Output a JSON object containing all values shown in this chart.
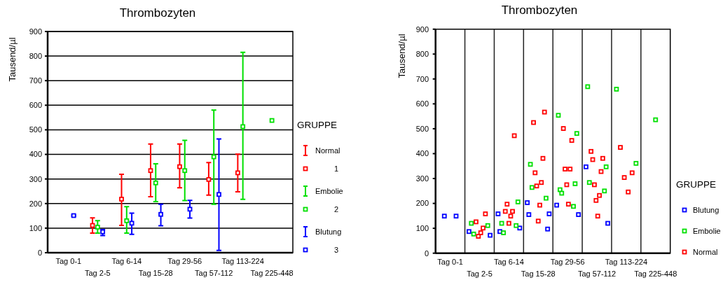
{
  "chart_data": [
    {
      "type": "scatter",
      "title": "Thrombozyten",
      "ylabel": "Tausend/µl",
      "categories": [
        "Tag 0-1",
        "Tag 2-5",
        "Tag 6-14",
        "Tag 15-28",
        "Tag 29-56",
        "Tag 57-112",
        "Tag 113-224",
        "Tag 225-448"
      ],
      "ylim": [
        0,
        900
      ],
      "yticks": [
        0,
        100,
        200,
        300,
        400,
        500,
        600,
        700,
        800,
        900
      ],
      "grid": "y",
      "legend": "right",
      "legend_title": "GRUPPE",
      "marker": "square",
      "annotations": [
        "1",
        "2",
        "3"
      ],
      "series": [
        {
          "name": "Normal",
          "color": "#ff0000",
          "values": [
            null,
            111,
            218,
            334,
            350,
            298,
            325,
            null
          ],
          "errors": [
            null,
            [
              80,
              142
            ],
            [
              111,
              319
            ],
            [
              228,
              442
            ],
            [
              264,
              442
            ],
            [
              234,
              367
            ],
            [
              248,
              401
            ],
            null
          ]
        },
        {
          "name": "Embolie",
          "color": "#00e000",
          "values": [
            null,
            104,
            130,
            284,
            334,
            390,
            513,
            538
          ],
          "errors": [
            null,
            [
              80,
              130
            ],
            [
              80,
              187
            ],
            [
              208,
              362
            ],
            [
              212,
              457
            ],
            [
              197,
              580
            ],
            [
              217,
              815
            ],
            null
          ]
        },
        {
          "name": "Blutung",
          "color": "#0000ff",
          "values": [
            151,
            85,
            120,
            156,
            177,
            237,
            null,
            null
          ],
          "errors": [
            [
              148,
              154
            ],
            [
              70,
              94
            ],
            [
              75,
              161
            ],
            [
              110,
              197
            ],
            [
              141,
              213
            ],
            [
              9,
              463
            ],
            null,
            null
          ]
        }
      ]
    },
    {
      "type": "scatter",
      "title": "Thrombozyten",
      "ylabel": "Tausend/µl",
      "categories": [
        "Tag 0-1",
        "Tag 2-5",
        "Tag 6-14",
        "Tag 15-28",
        "Tag 29-56",
        "Tag 57-112",
        "Tag 113-224",
        "Tag 225-448"
      ],
      "ylim": [
        0,
        900
      ],
      "yticks": [
        0,
        100,
        200,
        300,
        400,
        500,
        600,
        700,
        800,
        900
      ],
      "legend": "right",
      "legend_title": "GRUPPE",
      "marker": "square",
      "series": [
        {
          "name": "Blutung",
          "color": "#0000ff",
          "x": [
            "Tag 0-1",
            "Tag 0-1",
            "Tag 2-5",
            "Tag 2-5",
            "Tag 6-14",
            "Tag 6-14",
            "Tag 6-14",
            "Tag 15-28",
            "Tag 15-28",
            "Tag 15-28",
            "Tag 15-28",
            "Tag 29-56",
            "Tag 29-56",
            "Tag 57-112",
            "Tag 57-112"
          ],
          "values": [
            149,
            149,
            87,
            72,
            158,
            101,
            87,
            203,
            158,
            155,
            97,
            193,
            155,
            347,
            120
          ]
        },
        {
          "name": "Embolie",
          "color": "#00e000",
          "x": [
            "Tag 2-5",
            "Tag 2-5",
            "Tag 2-5",
            "Tag 6-14",
            "Tag 6-14",
            "Tag 6-14",
            "Tag 6-14",
            "Tag 15-28",
            "Tag 15-28",
            "Tag 15-28",
            "Tag 29-56",
            "Tag 29-56",
            "Tag 29-56",
            "Tag 29-56",
            "Tag 29-56",
            "Tag 29-56",
            "Tag 57-112",
            "Tag 57-112",
            "Tag 57-112",
            "Tag 57-112",
            "Tag 113-224",
            "Tag 113-224",
            "Tag 225-448"
          ],
          "values": [
            120,
            111,
            77,
            206,
            120,
            111,
            82,
            357,
            221,
            264,
            554,
            481,
            255,
            279,
            241,
            188,
            669,
            347,
            284,
            250,
            659,
            361,
            536
          ]
        },
        {
          "name": "Normal",
          "color": "#ff0000",
          "x": [
            "Tag 2-5",
            "Tag 2-5",
            "Tag 2-5",
            "Tag 2-5",
            "Tag 2-5",
            "Tag 6-14",
            "Tag 6-14",
            "Tag 6-14",
            "Tag 6-14",
            "Tag 6-14",
            "Tag 6-14",
            "Tag 15-28",
            "Tag 15-28",
            "Tag 15-28",
            "Tag 15-28",
            "Tag 15-28",
            "Tag 15-28",
            "Tag 15-28",
            "Tag 15-28",
            "Tag 29-56",
            "Tag 29-56",
            "Tag 29-56",
            "Tag 29-56",
            "Tag 29-56",
            "Tag 29-56",
            "Tag 57-112",
            "Tag 57-112",
            "Tag 57-112",
            "Tag 57-112",
            "Tag 57-112",
            "Tag 57-112",
            "Tag 57-112",
            "Tag 57-112",
            "Tag 113-224",
            "Tag 113-224",
            "Tag 113-224",
            "Tag 113-224"
          ],
          "values": [
            158,
            126,
            101,
            68,
            82,
            472,
            168,
            168,
            197,
            149,
            120,
            567,
            525,
            381,
            323,
            284,
            270,
            193,
            129,
            501,
            453,
            338,
            338,
            275,
            197,
            409,
            381,
            376,
            328,
            275,
            232,
            212,
            149,
            425,
            323,
            304,
            246
          ]
        }
      ]
    }
  ]
}
